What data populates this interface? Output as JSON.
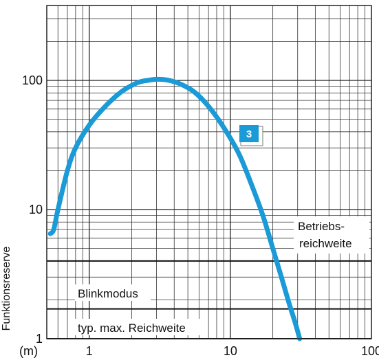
{
  "chart_data": {
    "type": "line",
    "x_scale": "log",
    "y_scale": "log",
    "xlim": [
      0.5,
      100
    ],
    "ylim": [
      1,
      380
    ],
    "grid": true,
    "ylabel": "Funktionsreserve",
    "x_unit_label": "(m)",
    "x_ticks": [
      {
        "value": 1,
        "label": "1"
      },
      {
        "value": 10,
        "label": "10"
      },
      {
        "value": 100,
        "label": "100"
      }
    ],
    "y_ticks": [
      {
        "value": 1,
        "label": "1"
      },
      {
        "value": 10,
        "label": "10"
      },
      {
        "value": 100,
        "label": "100"
      }
    ],
    "series": [
      {
        "name": "3",
        "color": "#1a9ad6",
        "points": [
          {
            "x": 0.53,
            "y": 6.5
          },
          {
            "x": 0.56,
            "y": 7.0
          },
          {
            "x": 0.6,
            "y": 10
          },
          {
            "x": 0.7,
            "y": 20
          },
          {
            "x": 0.8,
            "y": 30
          },
          {
            "x": 1.0,
            "y": 45
          },
          {
            "x": 1.3,
            "y": 63
          },
          {
            "x": 1.7,
            "y": 82
          },
          {
            "x": 2.2,
            "y": 96
          },
          {
            "x": 2.6,
            "y": 100
          },
          {
            "x": 3.0,
            "y": 102
          },
          {
            "x": 3.5,
            "y": 101
          },
          {
            "x": 4.3,
            "y": 95
          },
          {
            "x": 5.5,
            "y": 82
          },
          {
            "x": 7.0,
            "y": 63
          },
          {
            "x": 9.0,
            "y": 43
          },
          {
            "x": 11.5,
            "y": 27
          },
          {
            "x": 14.0,
            "y": 16
          },
          {
            "x": 17.0,
            "y": 9
          },
          {
            "x": 20.0,
            "y": 5
          },
          {
            "x": 23.0,
            "y": 3
          },
          {
            "x": 26.0,
            "y": 1.9
          },
          {
            "x": 29.0,
            "y": 1.3
          },
          {
            "x": 31.0,
            "y": 1.0
          }
        ]
      }
    ],
    "annotations": [
      {
        "text": "Betriebs-",
        "y": 4.0,
        "style": "line"
      },
      {
        "text": "reichweite",
        "style": "label-only"
      },
      {
        "text": "Blinkmodus",
        "y": 1.7,
        "style": "line"
      },
      {
        "text": "typ. max. Reichweite",
        "style": "label-only"
      }
    ],
    "series_badge": {
      "label": "3",
      "color": "#1a9ad6"
    }
  }
}
